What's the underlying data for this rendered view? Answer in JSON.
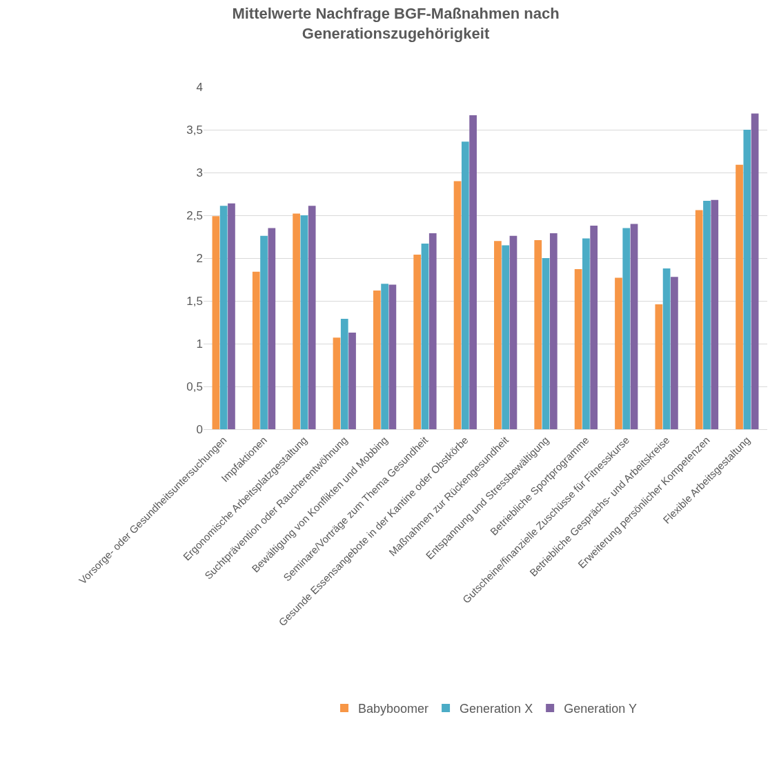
{
  "chart_data": {
    "type": "bar",
    "title": "Mittelwerte Nachfrage BGF-Maßnahmen nach Generationszugehörigkeit",
    "categories": [
      "Vorsorge- oder Gesundheitsuntersuchungen",
      "Impfaktionen",
      "Ergonomische Arbeitsplatzgestaltung",
      "Suchtprävention oder Raucherentwöhnung",
      "Bewältigung von Konflikten und Mobbing",
      "Seminare/Vorträge zum Thema Gesundheit",
      "Gesunde Essensangebote in der Kantine oder Obstkörbe",
      "Maßnahmen zur Rückengesundheit",
      "Entspannung und Stressbewältigung",
      "Betriebliche Sportprogramme",
      "Gutscheine/finanzielle Zuschüsse für Fitnesskurse",
      "Betriebliche Gesprächs- und Arbeitskreise",
      "Erweiterung persönlicher Kompetenzen",
      "Flexible Arbeitsgestaltung"
    ],
    "series": [
      {
        "name": "Babyboomer",
        "color": "#f79646",
        "values": [
          2.49,
          1.84,
          2.52,
          1.07,
          1.62,
          2.04,
          2.9,
          2.2,
          2.21,
          1.87,
          1.77,
          1.46,
          2.56,
          3.09
        ]
      },
      {
        "name": "Generation X",
        "color": "#4bacc6",
        "values": [
          2.61,
          2.26,
          2.5,
          1.29,
          1.7,
          2.17,
          3.36,
          2.15,
          2.0,
          2.23,
          2.35,
          1.88,
          2.67,
          3.5
        ]
      },
      {
        "name": "Generation Y",
        "color": "#8064a2",
        "values": [
          2.64,
          2.35,
          2.61,
          1.13,
          1.69,
          2.29,
          3.67,
          2.26,
          2.29,
          2.38,
          2.4,
          1.78,
          2.68,
          3.69
        ]
      }
    ],
    "ylim": [
      0,
      4
    ],
    "yticks": [
      0,
      {
        "value": 0.5,
        "label": "0,5"
      },
      1,
      {
        "value": 1.5,
        "label": "1,5"
      },
      2,
      {
        "value": 2.5,
        "label": "2,5"
      },
      3,
      {
        "value": 3.5,
        "label": "3,5"
      },
      4
    ],
    "grid": "y",
    "legend": "bottom"
  }
}
